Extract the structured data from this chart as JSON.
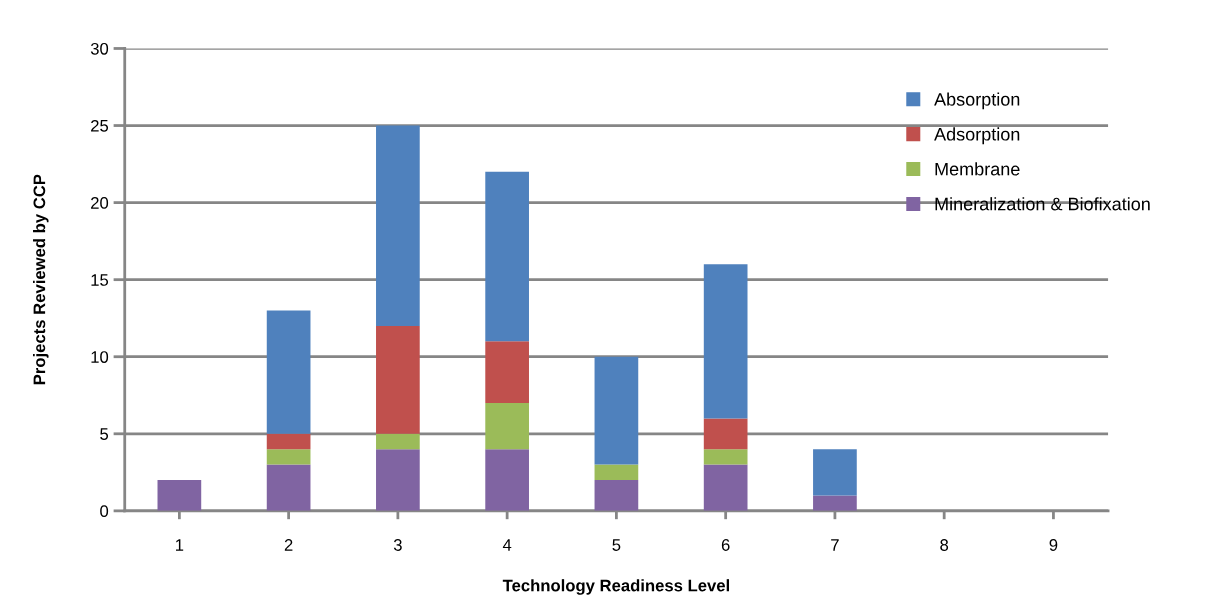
{
  "chart_data": {
    "type": "bar",
    "stacked": true,
    "xlabel": "Technology Readiness Level",
    "ylabel": "Projects Reviewed by CCP",
    "categories": [
      "1",
      "2",
      "3",
      "4",
      "5",
      "6",
      "7",
      "8",
      "9"
    ],
    "series": [
      {
        "name": "Mineralization & Biofixation",
        "color": "#8064a2",
        "values": [
          2,
          3,
          4,
          4,
          2,
          3,
          1,
          0,
          0
        ]
      },
      {
        "name": "Membrane",
        "color": "#9bbb59",
        "values": [
          0,
          1,
          1,
          3,
          1,
          1,
          0,
          0,
          0
        ]
      },
      {
        "name": "Adsorption",
        "color": "#c0504d",
        "values": [
          0,
          1,
          7,
          4,
          0,
          2,
          0,
          0,
          0
        ]
      },
      {
        "name": "Absorption",
        "color": "#4f81bd",
        "values": [
          0,
          8,
          13,
          11,
          7,
          10,
          3,
          0,
          0
        ]
      }
    ],
    "ylim": [
      0,
      30
    ],
    "yticks": [
      0,
      5,
      10,
      15,
      20,
      25,
      30
    ],
    "grid": "y",
    "legend": "top right"
  }
}
